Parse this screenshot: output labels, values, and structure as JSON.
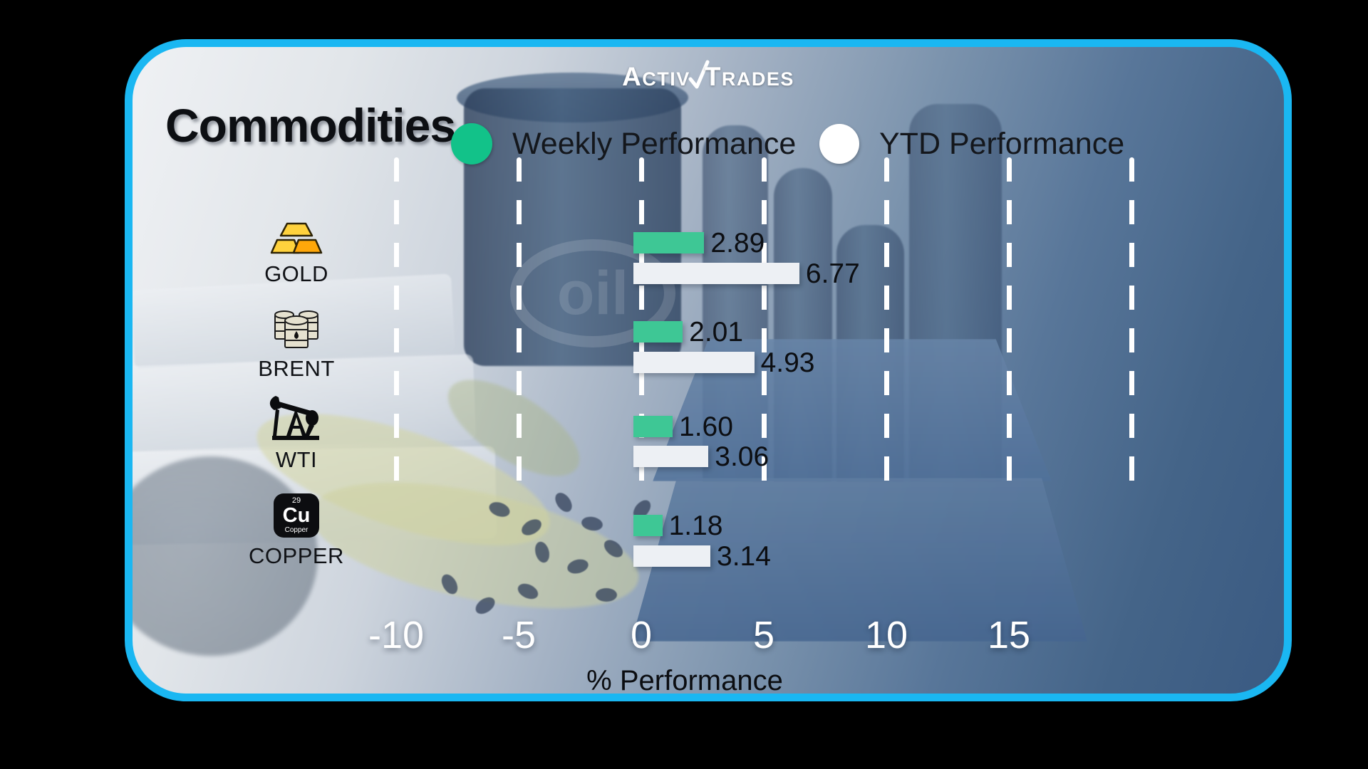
{
  "brand": {
    "name": "ActivTrades",
    "logo_part1": "ACTIV",
    "logo_part2": "TRADES"
  },
  "header": {
    "title": "Commodities"
  },
  "legend": {
    "weekly": {
      "label": "Weekly Performance",
      "color": "#12c289"
    },
    "ytd": {
      "label": "YTD Performance",
      "color": "#ffffff"
    }
  },
  "chart_data": {
    "type": "bar",
    "orientation": "horizontal",
    "title": "Commodities",
    "xlabel": "% Performance",
    "categories": [
      "GOLD",
      "BRENT",
      "WTI",
      "COPPER"
    ],
    "series": [
      {
        "name": "Weekly Performance",
        "color": "#3ec795",
        "values": [
          2.89,
          2.01,
          1.6,
          1.18
        ],
        "labels": [
          "2.89",
          "2.01",
          "1.60",
          "1.18"
        ]
      },
      {
        "name": "YTD Performance",
        "color": "#edf0f4",
        "values": [
          6.77,
          4.93,
          3.06,
          3.14
        ],
        "labels": [
          "6.77",
          "4.93",
          "3.06",
          "3.14"
        ]
      }
    ],
    "x_ticks": [
      -10,
      -5,
      0,
      5,
      10,
      15
    ],
    "gridlines": [
      -10,
      -5,
      0,
      5,
      10,
      15,
      20
    ],
    "xlim": [
      -12,
      22
    ],
    "grid": "dashed-white-vertical",
    "legend_position": "top"
  },
  "icons": {
    "gold": "gold-bars-icon",
    "brent": "oil-barrels-icon",
    "wti": "pumpjack-icon",
    "copper": "copper-element-icon"
  },
  "copper_icon": {
    "number": "29",
    "symbol": "Cu",
    "name": "Copper"
  },
  "background": {
    "oil_text": "oil"
  }
}
